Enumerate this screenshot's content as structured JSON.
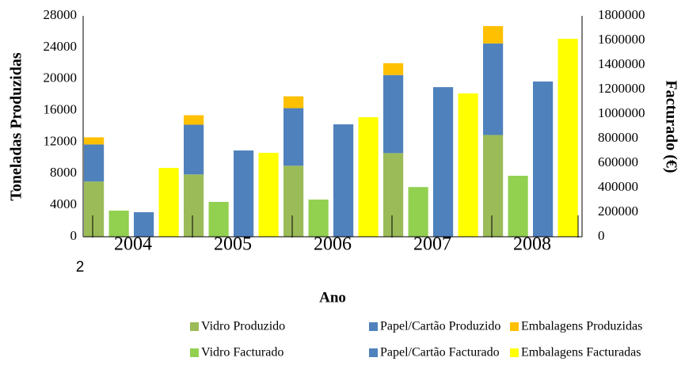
{
  "chart_data": {
    "type": "bar",
    "y_label": "Toneladas Produzidas",
    "y2_label": "Facturado (€)",
    "x_label": "Ano",
    "annotations": [
      "2"
    ],
    "categories": [
      "2004",
      "2005",
      "2006",
      "2007",
      "2008"
    ],
    "series": [
      {
        "name": "Vidro Produzido",
        "color": "#9bbb59",
        "axis": "y",
        "stacked": true,
        "values": [
          7000,
          7900,
          9000,
          10600,
          12900
        ]
      },
      {
        "name": "Papel/Cartão Produzido",
        "color": "#4f81bd",
        "axis": "y",
        "stacked": true,
        "values": [
          4700,
          6300,
          7300,
          9900,
          11600
        ]
      },
      {
        "name": "Embalagens Produzidas",
        "color": "#ffc000",
        "axis": "y",
        "stacked": true,
        "values": [
          900,
          1200,
          1500,
          1500,
          2200
        ]
      },
      {
        "name": "Vidro Facturado",
        "color": "#92d050",
        "axis": "y2",
        "stacked": false,
        "values": [
          213000,
          284000,
          303000,
          405000,
          497000
        ]
      },
      {
        "name": "Papel/Cartão Facturado",
        "color": "#4f81bd",
        "axis": "y2",
        "stacked": false,
        "values": [
          200000,
          703000,
          916000,
          1219000,
          1265000
        ]
      },
      {
        "name": "Embalagens Facturadas",
        "color": "#ffff00",
        "axis": "y2",
        "stacked": false,
        "values": [
          561000,
          684000,
          974000,
          1168000,
          1613000
        ]
      }
    ],
    "ylim": [
      0,
      28000
    ],
    "yticks": [
      0,
      4000,
      8000,
      12000,
      16000,
      20000,
      24000,
      28000
    ],
    "y2lim": [
      0,
      1800000
    ],
    "y2ticks": [
      0,
      200000,
      400000,
      600000,
      800000,
      1000000,
      1200000,
      1400000,
      1600000,
      1800000
    ],
    "grid": false,
    "legend": "bottom"
  }
}
